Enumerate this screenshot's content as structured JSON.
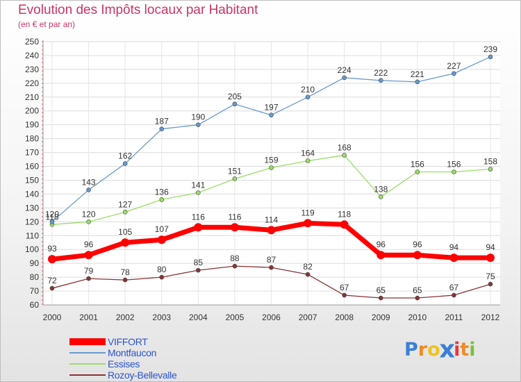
{
  "chart_data": {
    "type": "line",
    "title": "Evolution des Impôts locaux par Habitant",
    "subtitle": "(en € et par an)",
    "x": [
      "2000",
      "2001",
      "2002",
      "2003",
      "2004",
      "2005",
      "2006",
      "2007",
      "2008",
      "2009",
      "2010",
      "2011",
      "2012"
    ],
    "ylim": [
      60,
      250
    ],
    "yticks": [
      60,
      70,
      80,
      90,
      100,
      110,
      120,
      130,
      140,
      150,
      160,
      170,
      180,
      190,
      200,
      210,
      220,
      230,
      240,
      250
    ],
    "series": [
      {
        "name": "VIFFORT",
        "color": "#ff0000",
        "values": [
          93,
          96,
          105,
          107,
          116,
          116,
          114,
          119,
          118,
          96,
          96,
          94,
          94
        ]
      },
      {
        "name": "Montfaucon",
        "color": "#6699cc",
        "values": [
          120,
          143,
          162,
          187,
          190,
          205,
          197,
          210,
          224,
          222,
          221,
          227,
          239
        ]
      },
      {
        "name": "Essises",
        "color": "#99dd66",
        "values": [
          118,
          120,
          127,
          136,
          141,
          151,
          159,
          164,
          168,
          138,
          156,
          156,
          158
        ]
      },
      {
        "name": "Rozoy-Bellevalle",
        "color": "#883333",
        "values": [
          72,
          79,
          78,
          80,
          85,
          88,
          87,
          82,
          67,
          65,
          65,
          67,
          75
        ]
      }
    ]
  },
  "legend": {
    "items": [
      {
        "label": "VIFFORT"
      },
      {
        "label": "Montfaucon"
      },
      {
        "label": "Essises"
      },
      {
        "label": "Rozoy-Bellevalle"
      }
    ]
  },
  "logo": {
    "letters": [
      "P",
      "r",
      "o",
      "x",
      "i",
      "t",
      "i"
    ],
    "colors": [
      "#3a7fd5",
      "#f08a24",
      "#f0c21e",
      "#3a7fd5",
      "#e23a3a",
      "#f08a24",
      "#7cc03a"
    ]
  }
}
